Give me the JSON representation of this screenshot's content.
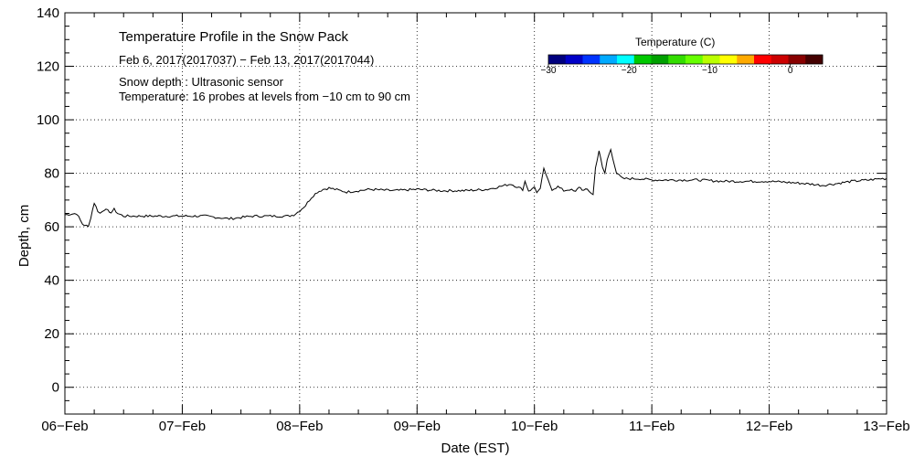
{
  "chart_data": {
    "type": "line",
    "title": "Temperature Profile in the Snow Pack",
    "subtitle": "Feb  6, 2017(2017037) − Feb 13, 2017(2017044)",
    "info_lines": [
      "Snow depth : Ultrasonic sensor",
      "Temperature: 16 probes at levels from −10 cm to 90 cm"
    ],
    "xlabel": "Date (EST)",
    "ylabel": "Depth, cm",
    "xlim": [
      0,
      7
    ],
    "ylim": [
      -10,
      140
    ],
    "x_ticks": [
      {
        "value": 0,
        "label": "06−Feb"
      },
      {
        "value": 1,
        "label": "07−Feb"
      },
      {
        "value": 2,
        "label": "08−Feb"
      },
      {
        "value": 3,
        "label": "09−Feb"
      },
      {
        "value": 4,
        "label": "10−Feb"
      },
      {
        "value": 5,
        "label": "11−Feb"
      },
      {
        "value": 6,
        "label": "12−Feb"
      },
      {
        "value": 7,
        "label": "13−Feb"
      }
    ],
    "y_ticks": [
      {
        "value": 0,
        "label": "0"
      },
      {
        "value": 20,
        "label": "20"
      },
      {
        "value": 40,
        "label": "40"
      },
      {
        "value": 60,
        "label": "60"
      },
      {
        "value": 80,
        "label": "80"
      },
      {
        "value": 100,
        "label": "100"
      },
      {
        "value": 120,
        "label": "120"
      },
      {
        "value": 140,
        "label": "140"
      }
    ],
    "grid": true,
    "series": [
      {
        "name": "Snow depth",
        "color": "#000000",
        "x": [
          0.0,
          0.1,
          0.15,
          0.2,
          0.22,
          0.25,
          0.28,
          0.3,
          0.35,
          0.38,
          0.42,
          0.45,
          0.5,
          0.6,
          0.8,
          1.0,
          1.2,
          1.3,
          1.4,
          1.5,
          1.6,
          1.7,
          1.8,
          1.9,
          1.95,
          2.0,
          2.05,
          2.1,
          2.15,
          2.2,
          2.25,
          2.3,
          2.35,
          2.4,
          2.5,
          2.6,
          2.8,
          3.0,
          3.2,
          3.4,
          3.6,
          3.7,
          3.8,
          3.85,
          3.9,
          3.92,
          3.95,
          3.98,
          4.0,
          4.02,
          4.05,
          4.08,
          4.1,
          4.15,
          4.2,
          4.25,
          4.3,
          4.35,
          4.38,
          4.42,
          4.45,
          4.5,
          4.52,
          4.55,
          4.58,
          4.6,
          4.62,
          4.65,
          4.7,
          4.75,
          4.8,
          4.9,
          5.0,
          5.2,
          5.4,
          5.6,
          5.8,
          6.0,
          6.2,
          6.35,
          6.45,
          6.55,
          6.7,
          6.85,
          6.95,
          7.0
        ],
        "y": [
          64.5,
          65,
          61,
          60,
          63.5,
          69,
          66,
          65,
          67,
          65,
          66.5,
          65,
          64,
          64,
          64,
          64,
          64,
          63.5,
          63,
          63.5,
          64,
          64,
          64,
          64,
          64.5,
          66,
          68,
          71,
          73,
          74,
          74.5,
          74,
          73.5,
          73,
          73.5,
          74,
          73.5,
          74,
          73.5,
          73.5,
          74,
          75,
          76,
          75,
          74,
          77,
          73.5,
          74,
          75,
          73,
          74,
          82,
          79,
          74,
          75,
          73.5,
          74,
          73,
          75,
          73.5,
          74,
          72,
          82,
          88.5,
          82,
          80,
          85,
          89,
          80,
          78,
          78,
          78,
          77.5,
          77.5,
          77.5,
          77,
          77,
          77,
          76.5,
          76,
          75.5,
          76,
          77,
          77.5,
          78,
          78
        ]
      }
    ],
    "colorbar": {
      "title": "Temperature (C)",
      "ticks": [
        {
          "value": -30,
          "label": "−30"
        },
        {
          "value": -20,
          "label": "−20"
        },
        {
          "value": -10,
          "label": "−10"
        },
        {
          "value": 0,
          "label": "0"
        }
      ],
      "range": [
        -30,
        4
      ],
      "colors": [
        "#00007f",
        "#0000c8",
        "#0033ff",
        "#00aaff",
        "#00ffff",
        "#00c800",
        "#00a000",
        "#33dd00",
        "#66ff00",
        "#bbff00",
        "#ffff00",
        "#ffaa00",
        "#ff0000",
        "#cc0000",
        "#880000",
        "#440000"
      ]
    }
  }
}
